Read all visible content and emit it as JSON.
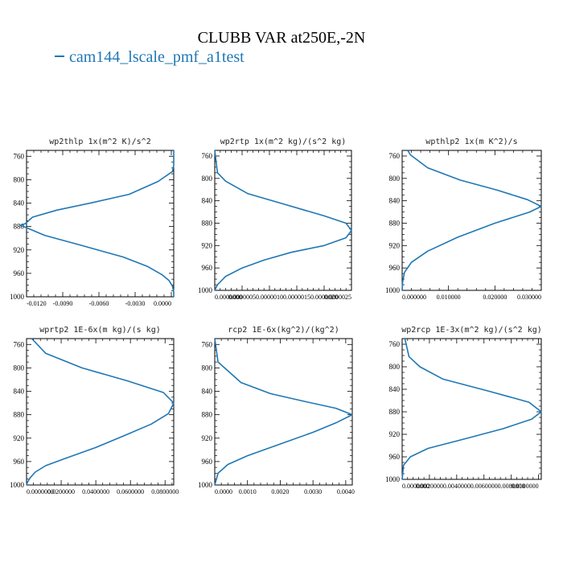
{
  "title": "CLUBB VAR at250E,-2N",
  "legend": {
    "label": "cam144_lscale_pmf_a1test",
    "color": "#1f77b4"
  },
  "chart_data": [
    {
      "type": "line",
      "title": "wp2thlp  1x(m^2 K)/s^2",
      "xlim": [
        -0.012,
        0.0002
      ],
      "ylim": [
        1000,
        750
      ],
      "yticks": [
        760,
        800,
        840,
        880,
        920,
        960,
        1000
      ],
      "xticks": [
        -0.012,
        -0.009,
        -0.006,
        -0.003,
        0.0
      ],
      "xtick_labels": [
        "-0.0120",
        "-0.0090",
        "-0.0060",
        "-0.0030",
        "0.0000"
      ],
      "series": [
        {
          "color": "#1f77b4",
          "x": [
            0.0002,
            0.0002,
            0.0001,
            -0.0011,
            -0.0035,
            -0.0065,
            -0.0095,
            -0.0115,
            -0.0121,
            -0.0125,
            -0.012,
            -0.0105,
            -0.0075,
            -0.004,
            -0.002,
            -0.0008,
            -0.0002,
            0.0001,
            0.0002,
            0.0002
          ],
          "y": [
            750,
            775,
            786,
            803,
            825,
            839,
            852,
            864,
            875,
            878,
            882,
            895,
            912,
            932,
            948,
            962,
            972,
            982,
            992,
            1000
          ]
        }
      ]
    },
    {
      "type": "line",
      "title": "wp2rtp  1x(m^2 kg)/(s^2 kg)",
      "xlim": [
        0.0,
        2.5e-06
      ],
      "ylim": [
        1000,
        750
      ],
      "yticks": [
        760,
        800,
        840,
        880,
        920,
        960,
        1000
      ],
      "xticks": [
        0.0,
        5e-07,
        1e-06,
        1.5e-06,
        2e-06,
        2.5e-06
      ],
      "xtick_labels": [
        "0.0000000",
        "0.0000005",
        "0.0000010",
        "0.0000015",
        "0.0000020",
        "0.0000025"
      ],
      "series": [
        {
          "color": "#1f77b4",
          "x": [
            0.0,
            5e-08,
            2e-07,
            6e-07,
            1.3e-06,
            2e-06,
            2.4e-06,
            2.5e-06,
            2.4e-06,
            2e-06,
            1.4e-06,
            9e-07,
            5e-07,
            2e-07,
            5e-08,
            0.0
          ],
          "y": [
            750,
            790,
            805,
            827,
            847,
            867,
            880,
            893,
            906,
            920,
            932,
            946,
            960,
            975,
            990,
            1000
          ]
        }
      ]
    },
    {
      "type": "line",
      "title": "wpthlp2  1x(m K^2)/s",
      "xlim": [
        0.0,
        0.03
      ],
      "ylim": [
        1000,
        750
      ],
      "yticks": [
        760,
        800,
        840,
        880,
        920,
        960,
        1000
      ],
      "xticks": [
        0.0,
        0.01,
        0.02,
        0.03
      ],
      "xtick_labels": [
        "0.000000",
        "0.010000",
        "0.020000",
        "0.030000"
      ],
      "series": [
        {
          "color": "#1f77b4",
          "x": [
            0.0012,
            0.0018,
            0.0055,
            0.0125,
            0.0205,
            0.027,
            0.03,
            0.0275,
            0.02,
            0.012,
            0.0055,
            0.002,
            0.0005,
            0.0001,
            0.0
          ],
          "y": [
            750,
            758,
            781,
            803,
            821,
            838,
            850,
            860,
            880,
            905,
            930,
            950,
            968,
            985,
            1000
          ]
        }
      ]
    },
    {
      "type": "line",
      "title": "wprtp2  1E-6x(m kg)/(s kg)",
      "xlim": [
        0.0,
        0.085
      ],
      "ylim": [
        1000,
        750
      ],
      "yticks": [
        760,
        800,
        840,
        880,
        920,
        960,
        1000
      ],
      "xticks": [
        0.0,
        0.02,
        0.04,
        0.06,
        0.08
      ],
      "xtick_labels": [
        "0.0000000",
        "0.0200000",
        "0.0400000",
        "0.0600000",
        "0.0800000"
      ],
      "series": [
        {
          "color": "#1f77b4",
          "x": [
            0.003,
            0.011,
            0.032,
            0.058,
            0.079,
            0.085,
            0.082,
            0.072,
            0.057,
            0.04,
            0.022,
            0.011,
            0.005,
            0.002,
            0.0004,
            0.0
          ],
          "y": [
            750,
            775,
            800,
            822,
            842,
            860,
            878,
            896,
            915,
            936,
            955,
            967,
            978,
            988,
            996,
            1000
          ]
        }
      ]
    },
    {
      "type": "line",
      "title": "rcp2  1E-6x(kg^2)/(kg^2)",
      "xlim": [
        0.0,
        0.0042
      ],
      "ylim": [
        1000,
        750
      ],
      "yticks": [
        760,
        800,
        840,
        880,
        920,
        960,
        1000
      ],
      "xticks": [
        0.0,
        0.001,
        0.002,
        0.003,
        0.004
      ],
      "xtick_labels": [
        "0.0000",
        "0.0010",
        "0.0020",
        "0.0030",
        "0.0040"
      ],
      "series": [
        {
          "color": "#1f77b4",
          "x": [
            0.0,
            0.0001,
            0.0004,
            0.0008,
            0.0017,
            0.0028,
            0.0037,
            0.0042,
            0.0037,
            0.003,
            0.0019,
            0.001,
            0.0004,
            0.0001,
            0.0
          ],
          "y": [
            750,
            790,
            805,
            825,
            844,
            858,
            869,
            880,
            894,
            910,
            932,
            950,
            965,
            980,
            1000
          ]
        }
      ]
    },
    {
      "type": "line",
      "title": "wp2rcp  1E-3x(m^2 kg)/(s^2 kg)",
      "xlim": [
        0.0,
        0.0102
      ],
      "ylim": [
        1000,
        750
      ],
      "yticks": [
        760,
        800,
        840,
        880,
        920,
        960,
        1000
      ],
      "xticks": [
        0.0,
        0.002,
        0.004,
        0.006,
        0.008,
        0.01
      ],
      "xtick_labels": [
        "0.0000000",
        "0.0020000",
        "0.0040000",
        "0.0060000",
        "0.0080000",
        "0.0100000"
      ],
      "series": [
        {
          "color": "#1f77b4",
          "x": [
            0.0002,
            0.0005,
            0.0013,
            0.003,
            0.0063,
            0.0093,
            0.0102,
            0.0095,
            0.0074,
            0.0046,
            0.0019,
            0.0006,
            0.0001,
            0.0
          ],
          "y": [
            750,
            782,
            800,
            822,
            843,
            863,
            880,
            893,
            910,
            928,
            945,
            960,
            975,
            1000
          ]
        }
      ]
    }
  ]
}
